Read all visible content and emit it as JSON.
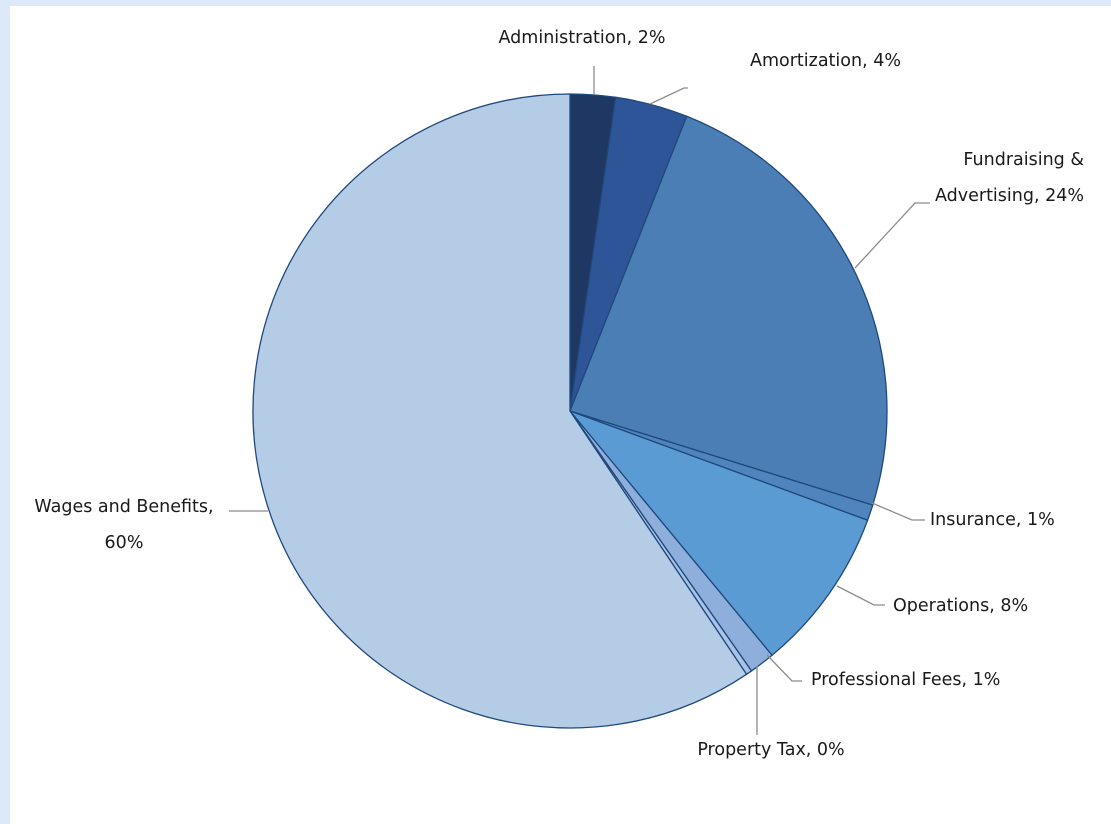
{
  "chart_data": {
    "type": "pie",
    "start_angle_deg": 0,
    "direction": "clockwise",
    "slices": [
      {
        "label": "Administration, 2%",
        "value": 2.3,
        "color": "#1f3763"
      },
      {
        "label": "Amortization, 4%",
        "value": 3.7,
        "color": "#2e5597"
      },
      {
        "label": "Fundraising & Advertising, 24%",
        "value": 23.8,
        "color": "#4a7eb4"
      },
      {
        "label": "Insurance, 1%",
        "value": 0.8,
        "color": "#5084bc"
      },
      {
        "label": "Operations, 8%",
        "value": 8.4,
        "color": "#5a9bd4"
      },
      {
        "label": "Professional Fees, 1%",
        "value": 1.3,
        "color": "#8eaedb"
      },
      {
        "label": "Property Tax, 0%",
        "value": 0.3,
        "color": "#a9c2e6"
      },
      {
        "label": "Wages and Benefits, 60%",
        "value": 59.4,
        "color": "#b4cce6"
      }
    ]
  }
}
